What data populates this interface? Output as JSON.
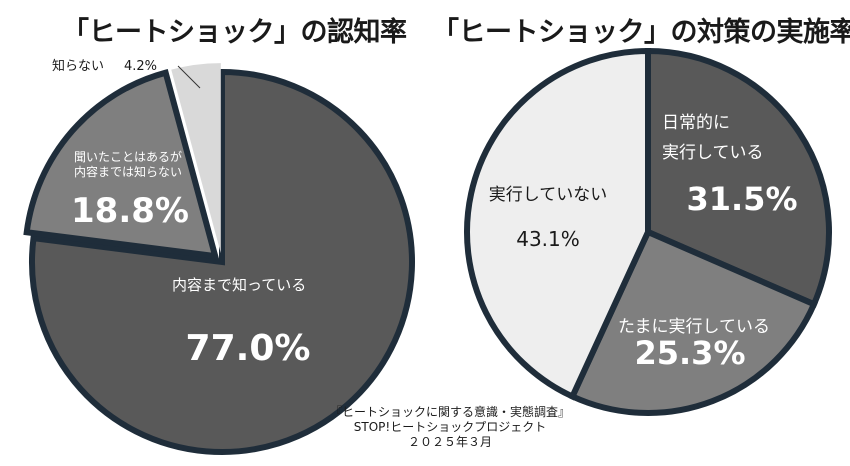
{
  "chart_data": [
    {
      "type": "pie",
      "title": "「ヒートショック」の認知率",
      "slices": [
        {
          "label": "内容まで知っている",
          "value": 77.0,
          "value_text": "77.0%",
          "color": "#595959"
        },
        {
          "label": "聞いたことはあるが内容までは知らない",
          "label_lines": [
            "聞いたことはあるが",
            "内容までは知らない"
          ],
          "value": 18.8,
          "value_text": "18.8%",
          "color": "#7f7f7f"
        },
        {
          "label": "知らない",
          "value": 4.2,
          "value_text": "4.2%",
          "color": "#d9d9d9"
        }
      ]
    },
    {
      "type": "pie",
      "title": "「ヒートショック」の対策の実施率",
      "slices": [
        {
          "label": "日常的に実行している",
          "label_lines": [
            "日常的に",
            "実行している"
          ],
          "value": 31.5,
          "value_text": "31.5%",
          "color": "#595959"
        },
        {
          "label": "たまに実行している",
          "value": 25.3,
          "value_text": "25.3%",
          "color": "#7f7f7f"
        },
        {
          "label": "実行していない",
          "value": 43.1,
          "value_text": "43.1%",
          "color": "#eeeeee"
        }
      ]
    }
  ],
  "source": {
    "line1": "『ヒートショックに関する意識・実態調査』",
    "line2": "STOP!ヒートショックプロジェクト",
    "line3": "２０２５年３月"
  },
  "colors": {
    "outline": "#1f2d3a",
    "label_light": "#ffffff",
    "label_dark": "#1a1a1a"
  }
}
